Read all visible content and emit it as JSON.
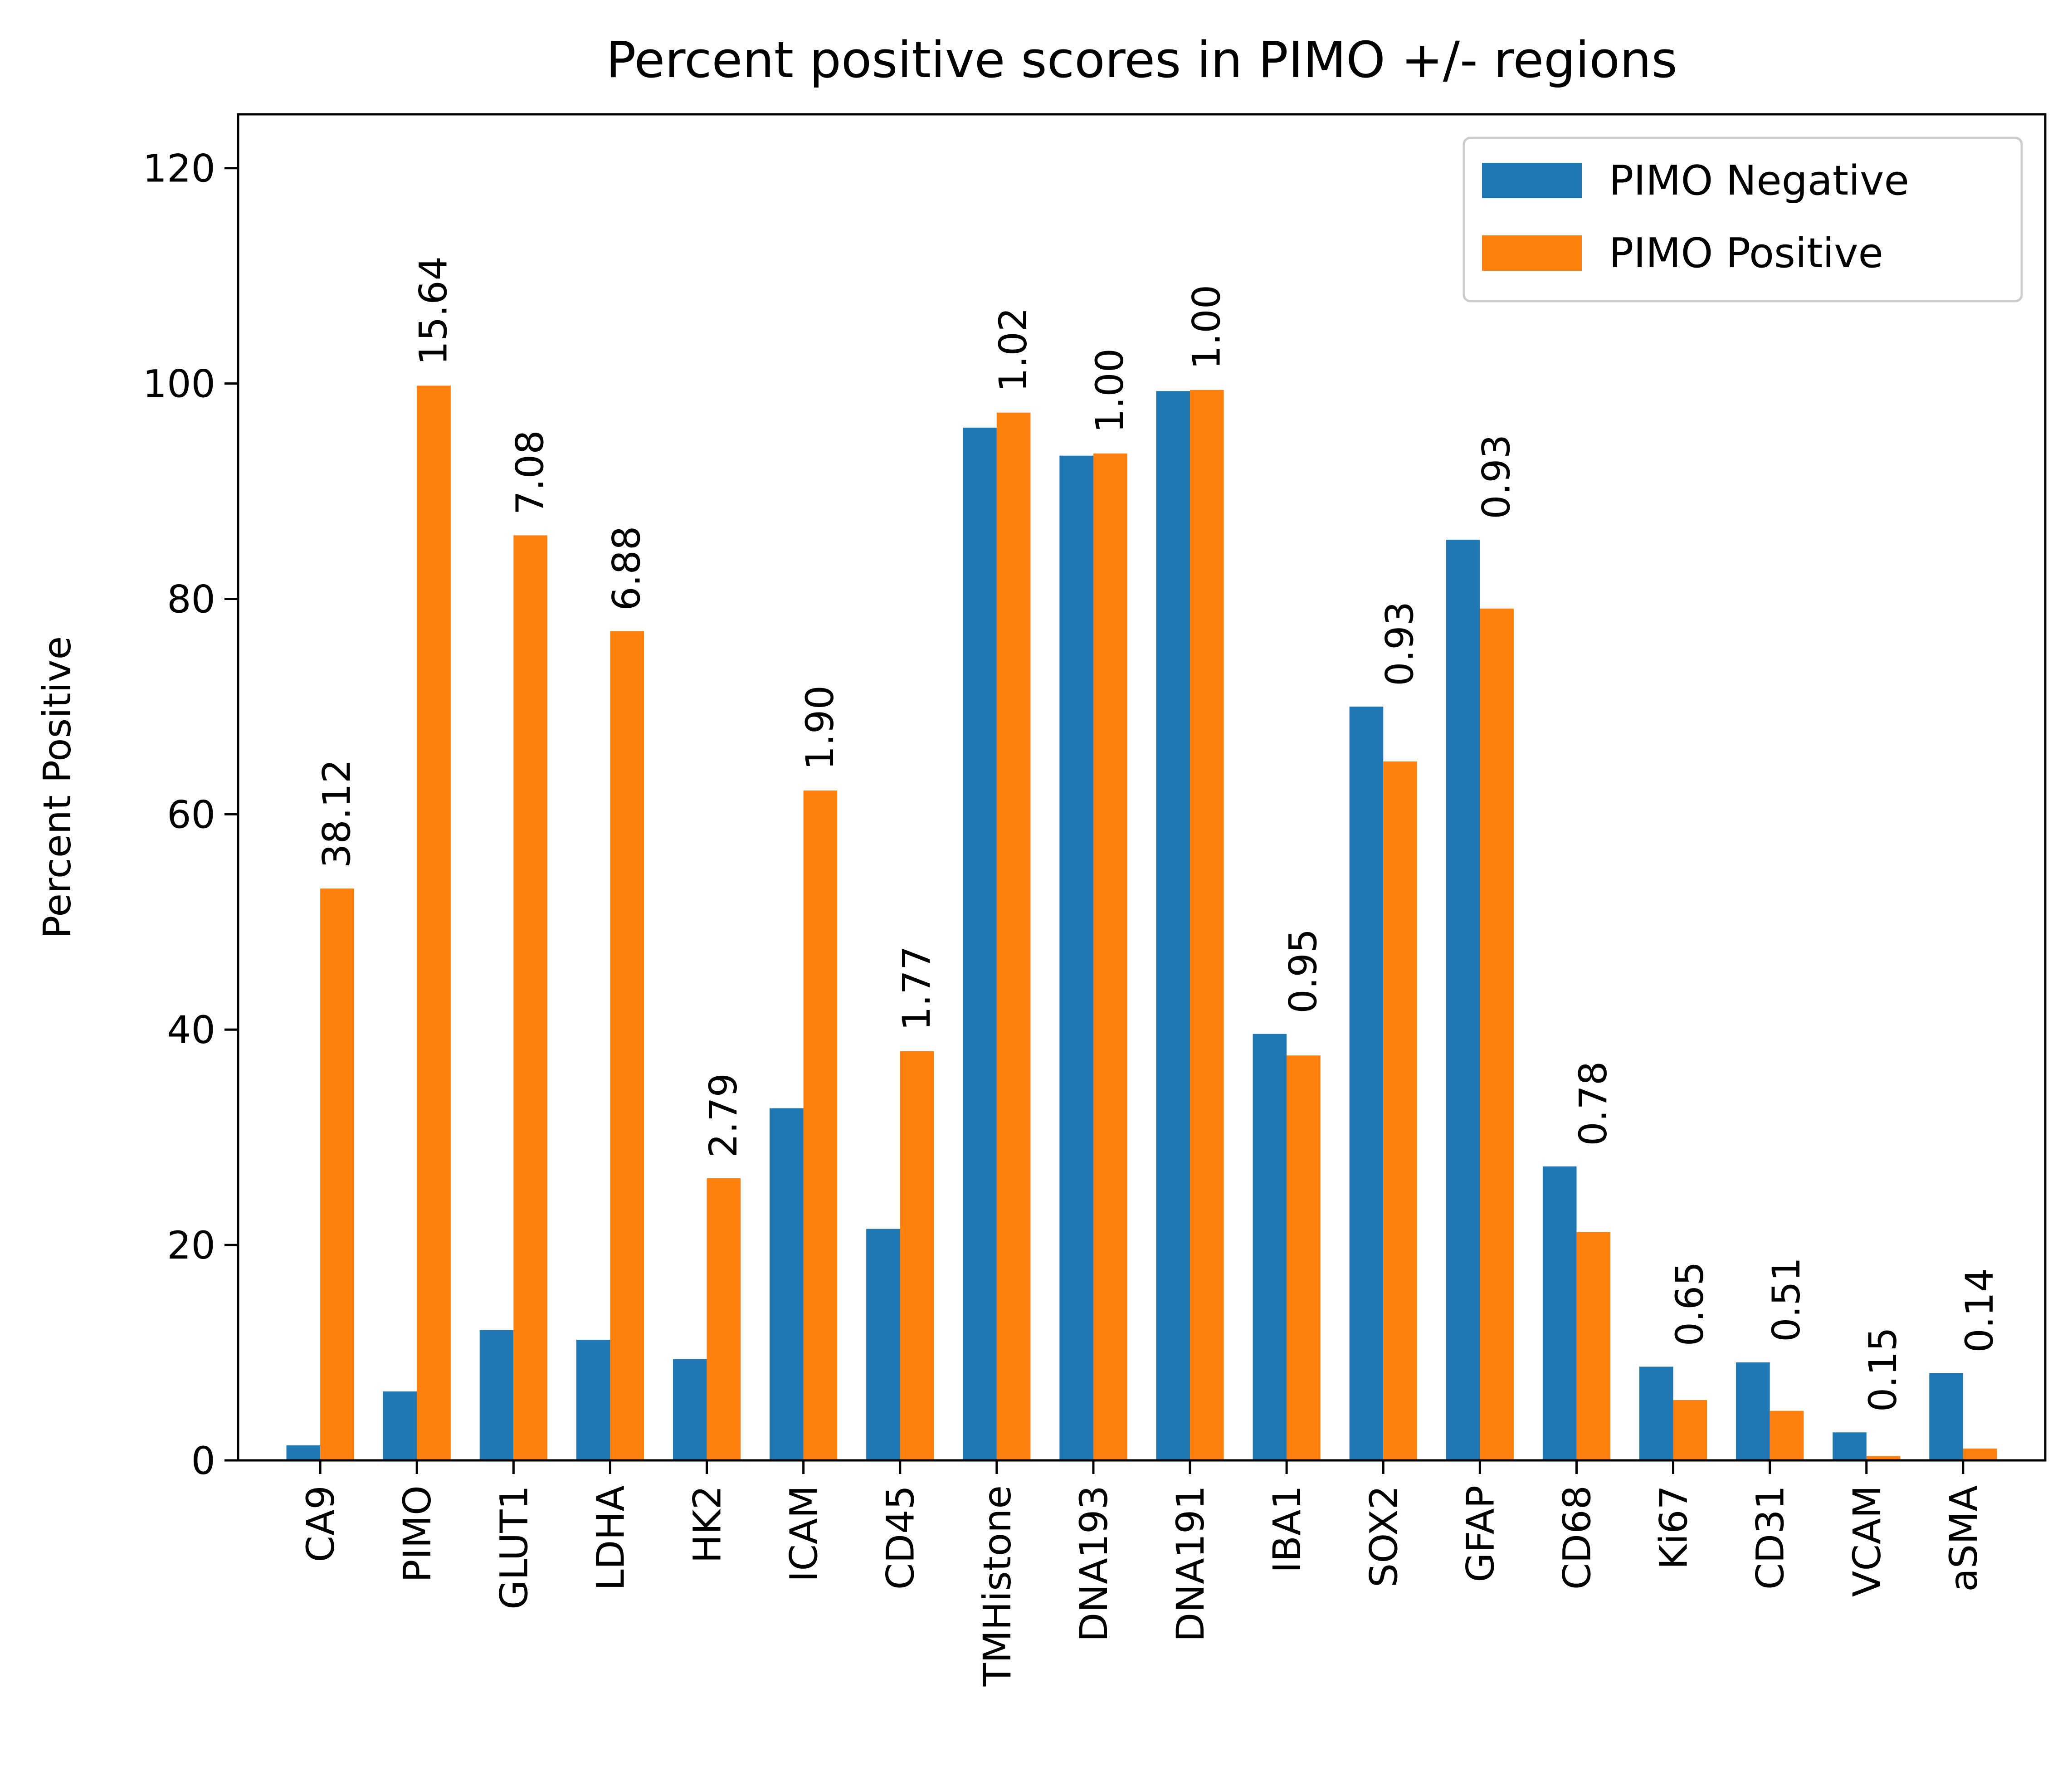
{
  "chart_data": {
    "type": "bar",
    "title": "Percent positive scores in PIMO +/- regions",
    "xlabel": "",
    "ylabel": "Percent Positive",
    "ylim": [
      0,
      125
    ],
    "yticks": [
      0,
      20,
      40,
      60,
      80,
      100,
      120
    ],
    "grid": false,
    "legend_position": "top-right",
    "categories": [
      "CA9",
      "PIMO",
      "GLUT1",
      "LDHA",
      "HK2",
      "ICAM",
      "CD45",
      "TMHistone",
      "DNA193",
      "DNA191",
      "IBA1",
      "SOX2",
      "GFAP",
      "CD68",
      "Ki67",
      "CD31",
      "VCAM",
      "aSMA"
    ],
    "series": [
      {
        "name": "PIMO Negative",
        "color": "#1f77b4",
        "values": [
          1.4,
          6.4,
          12.1,
          11.2,
          9.4,
          32.7,
          21.5,
          95.9,
          93.3,
          99.3,
          39.6,
          70.0,
          85.5,
          27.3,
          8.7,
          9.1,
          2.6,
          8.1
        ]
      },
      {
        "name": "PIMO Positive",
        "color": "#ff7f0e",
        "values": [
          53.1,
          99.8,
          85.9,
          77.0,
          26.2,
          62.2,
          38.0,
          97.3,
          93.5,
          99.4,
          37.6,
          64.9,
          79.1,
          21.2,
          5.6,
          4.6,
          0.4,
          1.1
        ]
      }
    ],
    "annotations": [
      "38.12",
      "15.64",
      "7.08",
      "6.88",
      "2.79",
      "1.90",
      "1.77",
      "1.02",
      "1.00",
      "1.00",
      "0.95",
      "0.93",
      "0.93",
      "0.78",
      "0.65",
      "0.51",
      "0.15",
      "0.14"
    ]
  }
}
